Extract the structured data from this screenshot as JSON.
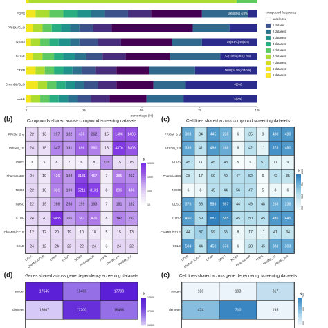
{
  "chart_data": [
    {
      "panel": "a",
      "type": "bar",
      "stacked": true,
      "orientation": "horizontal",
      "categories": [
        "CTD2",
        "PDPS",
        "PRISM_1st",
        "NCI60",
        "GDSC",
        "CTRP",
        "CheMBL/GLO",
        "CCLE"
      ],
      "visible_labels": [
        "",
        "PDPS",
        "PRISM/GLO",
        "NCI60",
        "GDSC",
        "CTRP",
        "ChemBL/GLO",
        "CCLE"
      ],
      "row_annotations": [
        "",
        "1060(3%)  4(0%)",
        "",
        "20(0.1%)  99(5%)",
        "57(10.5%)  83(1.3%)",
        "1688(34.5%)  14(1%)",
        "4(0%)",
        "4(0%)"
      ],
      "xlabel": "percentage (%)",
      "xticks": [
        "0",
        "25",
        "50",
        "75",
        "100"
      ],
      "xlim": [
        0,
        100
      ],
      "legend_title": "compound frequency",
      "legend": [
        "unselected",
        "1 dataset",
        "2 datasets",
        "3 datasets",
        "4 datasets",
        "5 datasets",
        "6 datasets",
        "7 datasets",
        "8 datasets",
        "9 datasets"
      ],
      "legend_colors": [
        "#ffffff",
        "#3b528b",
        "#2c728e",
        "#21918c",
        "#28ae80",
        "#5ec962",
        "#addc30",
        "#d8e219",
        "#f4e61e",
        "#fde725"
      ],
      "bar_order_top_to_bottom": [
        "0",
        "1",
        "2",
        "3",
        "4",
        "5",
        "6",
        "7"
      ],
      "series": [
        [
          1.0,
          90.0,
          9.0
        ],
        [
          4.0,
          6.0,
          6.0,
          6.0,
          6.0,
          6.0,
          10.0,
          10.0,
          22.0,
          20.0,
          4.0
        ],
        [
          3.0,
          4.0,
          4.0,
          4.0,
          4.0,
          4.0,
          6.0,
          8.0,
          35.0,
          16.0,
          12.0
        ],
        [
          2.0,
          4.0,
          4.0,
          4.0,
          5.0,
          4.0,
          8.0,
          10.0,
          22.0,
          13.0,
          24.0
        ],
        [
          3.0,
          4.0,
          5.0,
          4.0,
          5.0,
          5.0,
          7.0,
          10.0,
          19.0,
          22.0,
          16.0
        ],
        [
          4.0,
          4.0,
          4.0,
          4.0,
          4.0,
          4.0,
          6.0,
          9.0,
          14.0,
          20.0,
          27.0
        ],
        [
          5.0,
          4.0,
          4.0,
          4.0,
          4.0,
          4.0,
          6.0,
          8.0,
          16.0,
          14.0,
          31.0
        ],
        [
          2.0,
          4.0,
          4.0,
          4.0,
          4.0,
          4.0,
          6.0,
          8.0,
          16.0,
          16.0,
          32.0
        ]
      ],
      "segment_colors": [
        "#f4e61e",
        "#addc30",
        "#5ec962",
        "#28ae80",
        "#21918c",
        "#2c728e",
        "#3b528b",
        "#472d7b",
        "#440154",
        "#31688e",
        "#2b2b8b"
      ]
    },
    {
      "panel": "b",
      "type": "heatmap",
      "title": "Compounds shared across compound screening datasets",
      "rows": [
        "PRISM_2nd",
        "PRISM_1st",
        "PDPS",
        "PharmacoDB",
        "NCI60",
        "GDSC",
        "CTRP",
        "CheMBL/CCLE",
        "CCLE"
      ],
      "cols": [
        "CCLE",
        "CheMBL/CCLE",
        "CTRP",
        "GDSC",
        "NCI60",
        "PharmacoDB",
        "PDPS",
        "PRISM_1st",
        "PRISM_2nd"
      ],
      "values": [
        [
          22,
          13,
          197,
          182,
          436,
          262,
          15,
          1406,
          1406
        ],
        [
          24,
          15,
          347,
          181,
          896,
          380,
          15,
          4376,
          1406
        ],
        [
          3,
          5,
          8,
          7,
          6,
          8,
          218,
          15,
          15
        ],
        [
          24,
          10,
          426,
          193,
          3131,
          457,
          7,
          385,
          262
        ],
        [
          22,
          10,
          381,
          199,
          5211,
          3131,
          8,
          896,
          436
        ],
        [
          22,
          19,
          166,
          258,
          199,
          193,
          7,
          181,
          182
        ],
        [
          24,
          20,
          6485,
          166,
          381,
          426,
          8,
          347,
          197
        ],
        [
          12,
          12,
          20,
          19,
          10,
          10,
          5,
          15,
          13
        ],
        [
          24,
          12,
          24,
          22,
          22,
          24,
          3,
          24,
          22
        ]
      ],
      "legend_title": "N",
      "legend_ticks": [
        "10000",
        "1000",
        "100",
        "10"
      ],
      "colormap": [
        "#fcfbfd",
        "#e7d9f5",
        "#c5a3ee",
        "#9d5fe6",
        "#7a2fe3"
      ]
    },
    {
      "panel": "c",
      "type": "heatmap",
      "title": "Cell lines shared across compound screening datasets",
      "rows": [
        "PRISM_2nd",
        "PRISM_1st",
        "PDPS",
        "PharmacoDB",
        "NCI60",
        "GDSC",
        "CTRP",
        "CheMBL/CCLE",
        "CCLE"
      ],
      "cols": [
        "CCLE",
        "CheMBL/CCLE",
        "CTRP",
        "GDSC",
        "NCI60",
        "PharmacoDB",
        "PDPS",
        "PRISM_1st",
        "PRISM_2nd"
      ],
      "values": [
        [
          303,
          34,
          445,
          238,
          6,
          35,
          9,
          480,
          480
        ],
        [
          338,
          41,
          486,
          268,
          8,
          42,
          11,
          578,
          480
        ],
        [
          45,
          11,
          45,
          48,
          5,
          6,
          51,
          11,
          9
        ],
        [
          28,
          17,
          50,
          49,
          47,
          52,
          6,
          42,
          35
        ],
        [
          6,
          8,
          45,
          44,
          56,
          47,
          5,
          8,
          6
        ],
        [
          376,
          65,
          585,
          987,
          44,
          49,
          48,
          268,
          238
        ],
        [
          450,
          59,
          881,
          585,
          45,
          50,
          45,
          486,
          445
        ],
        [
          44,
          87,
          59,
          65,
          8,
          17,
          11,
          41,
          34
        ],
        [
          504,
          44,
          450,
          376,
          6,
          28,
          45,
          338,
          303
        ]
      ],
      "legend_title": "N",
      "legend_ticks": [
        "1000",
        "750",
        "500",
        "250"
      ],
      "colormap": [
        "#f7fcfd",
        "#d8eef3",
        "#a8d8ea",
        "#6aaed6",
        "#2e7ebc"
      ]
    },
    {
      "panel": "d",
      "type": "heatmap",
      "title": "Genes shared across gene dependency screening datasets",
      "rows": [
        "sanger",
        "demeter",
        ""
      ],
      "cols": [
        "",
        "",
        ""
      ],
      "values": [
        [
          17645,
          16466,
          17709
        ],
        [
          15667,
          17200,
          16466
        ],
        [
          null,
          null,
          null
        ]
      ],
      "legend_title": "N",
      "legend_ticks": [
        "17500",
        "17000",
        "16500"
      ],
      "colormap": [
        "#d7c9f7",
        "#9d7be8",
        "#6a35dc",
        "#5a1fd6"
      ]
    },
    {
      "panel": "e",
      "type": "heatmap",
      "title": "Cell lines shared across gene dependency screening datasets",
      "rows": [
        "sanger",
        "demeter",
        ""
      ],
      "cols": [
        "",
        "",
        ""
      ],
      "values": [
        [
          180,
          193,
          317
        ],
        [
          474,
          710,
          193
        ],
        [
          null,
          null,
          null
        ]
      ],
      "legend_title": "N",
      "legend_ticks": [
        "700",
        "600",
        "500"
      ],
      "colormap": [
        "#eef6fb",
        "#b6d8ec",
        "#6fb0d8",
        "#3a86c2"
      ]
    }
  ],
  "panel_labels": [
    "(b)",
    "(c)",
    "(d)",
    "(e)"
  ]
}
